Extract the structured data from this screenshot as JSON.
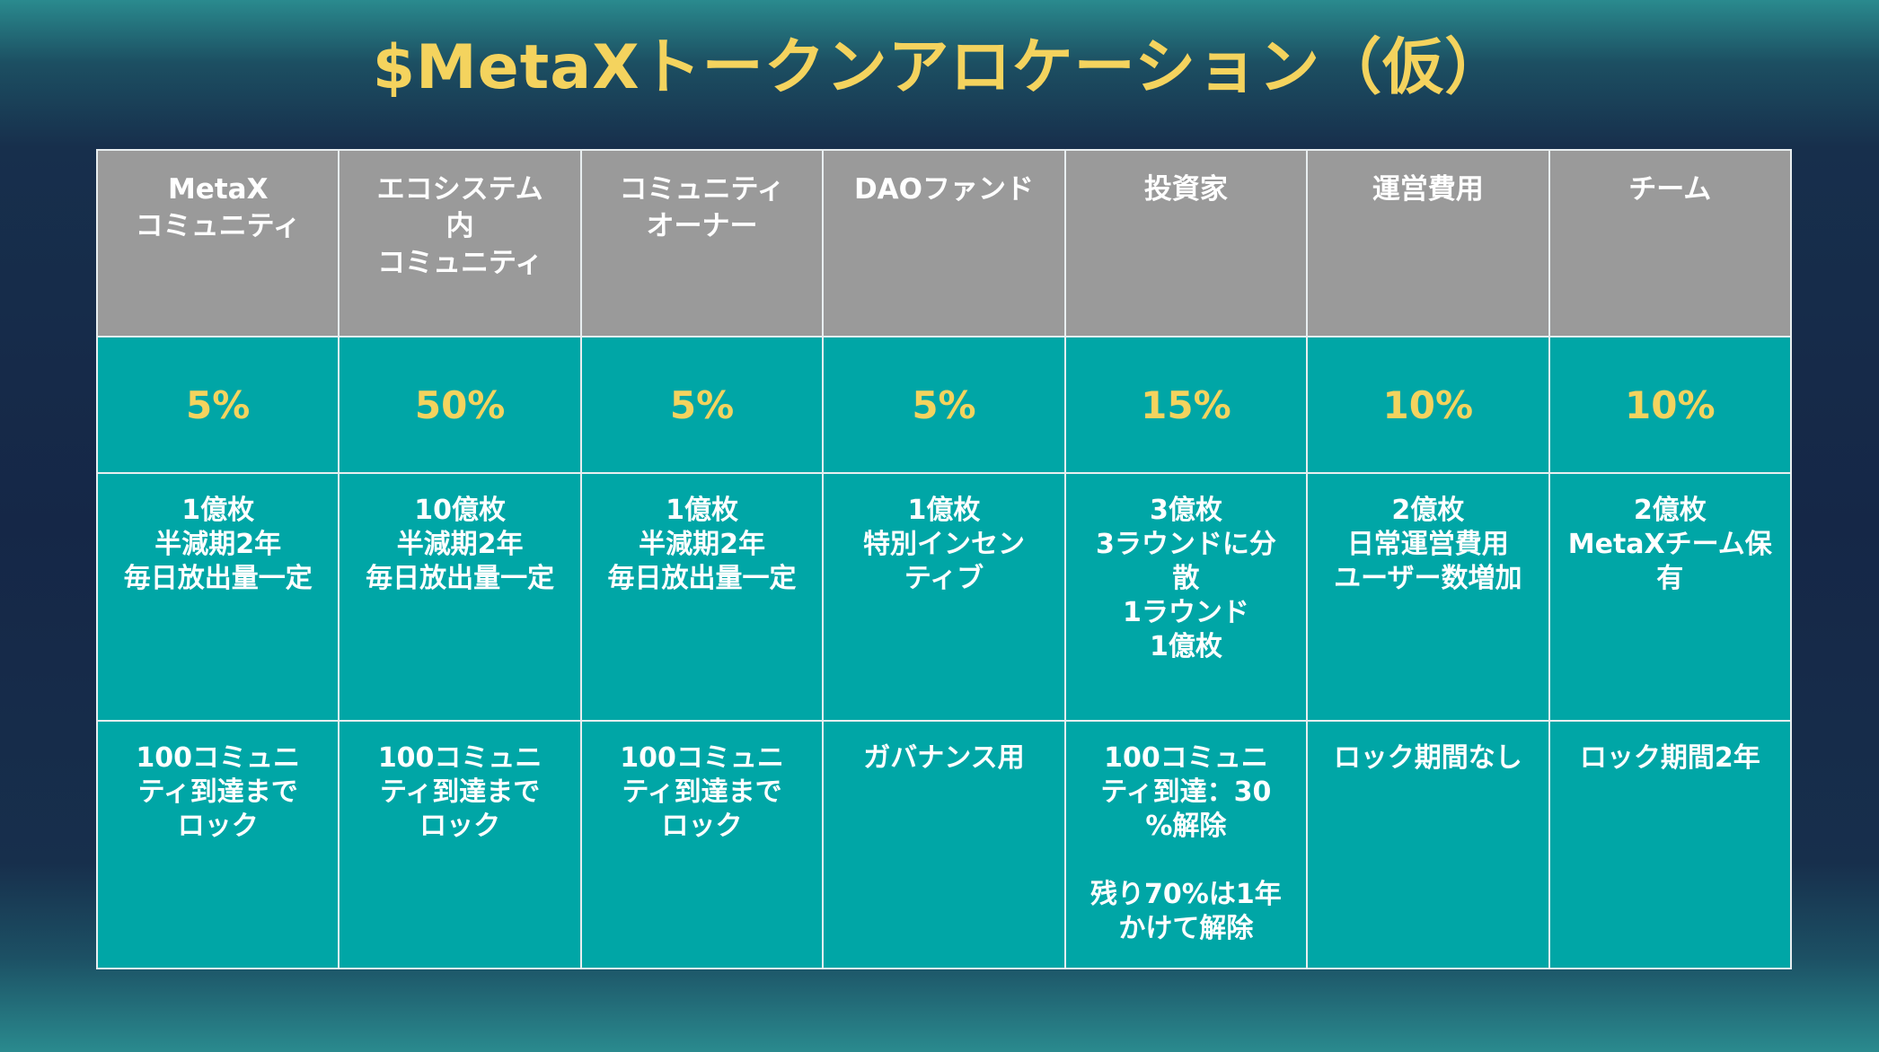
{
  "title": "$MetaXトークンアロケーション（仮）",
  "columns": [
    {
      "header": "MetaX\nコミュニティ",
      "percent": "5%",
      "detail": "1億枚\n半減期2年\n毎日放出量一定",
      "lock": "100コミュニ\nティ到達まで\nロック"
    },
    {
      "header": "エコシステム\n内\nコミュニティ",
      "percent": "50%",
      "detail": "10億枚\n半減期2年\n毎日放出量一定",
      "lock": "100コミュニ\nティ到達まで\nロック"
    },
    {
      "header": "コミュニティ\nオーナー",
      "percent": "5%",
      "detail": "1億枚\n半減期2年\n毎日放出量一定",
      "lock": "100コミュニ\nティ到達まで\nロック"
    },
    {
      "header": "DAOファンド",
      "percent": "5%",
      "detail": "1億枚\n特別インセン\nティブ",
      "lock": "ガバナンス用"
    },
    {
      "header": "投資家",
      "percent": "15%",
      "detail": "3億枚\n3ラウンドに分\n散\n1ラウンド\n1億枚",
      "lock": "100コミュニ\nティ到達：30\n%解除\n\n残り70%は1年\nかけて解除"
    },
    {
      "header": "運営費用",
      "percent": "10%",
      "detail": "2億枚\n日常運営費用\nユーザー数増加",
      "lock": "ロック期間なし"
    },
    {
      "header": "チーム",
      "percent": "10%",
      "detail": "2億枚\nMetaXチーム保\n有",
      "lock": "ロック期間2年"
    }
  ],
  "colors": {
    "title": "#f4d35e",
    "header_bg": "#9a9a9a",
    "cell_bg": "#00a6a6",
    "percent_text": "#f4d35e",
    "body_text": "#ffffff"
  }
}
